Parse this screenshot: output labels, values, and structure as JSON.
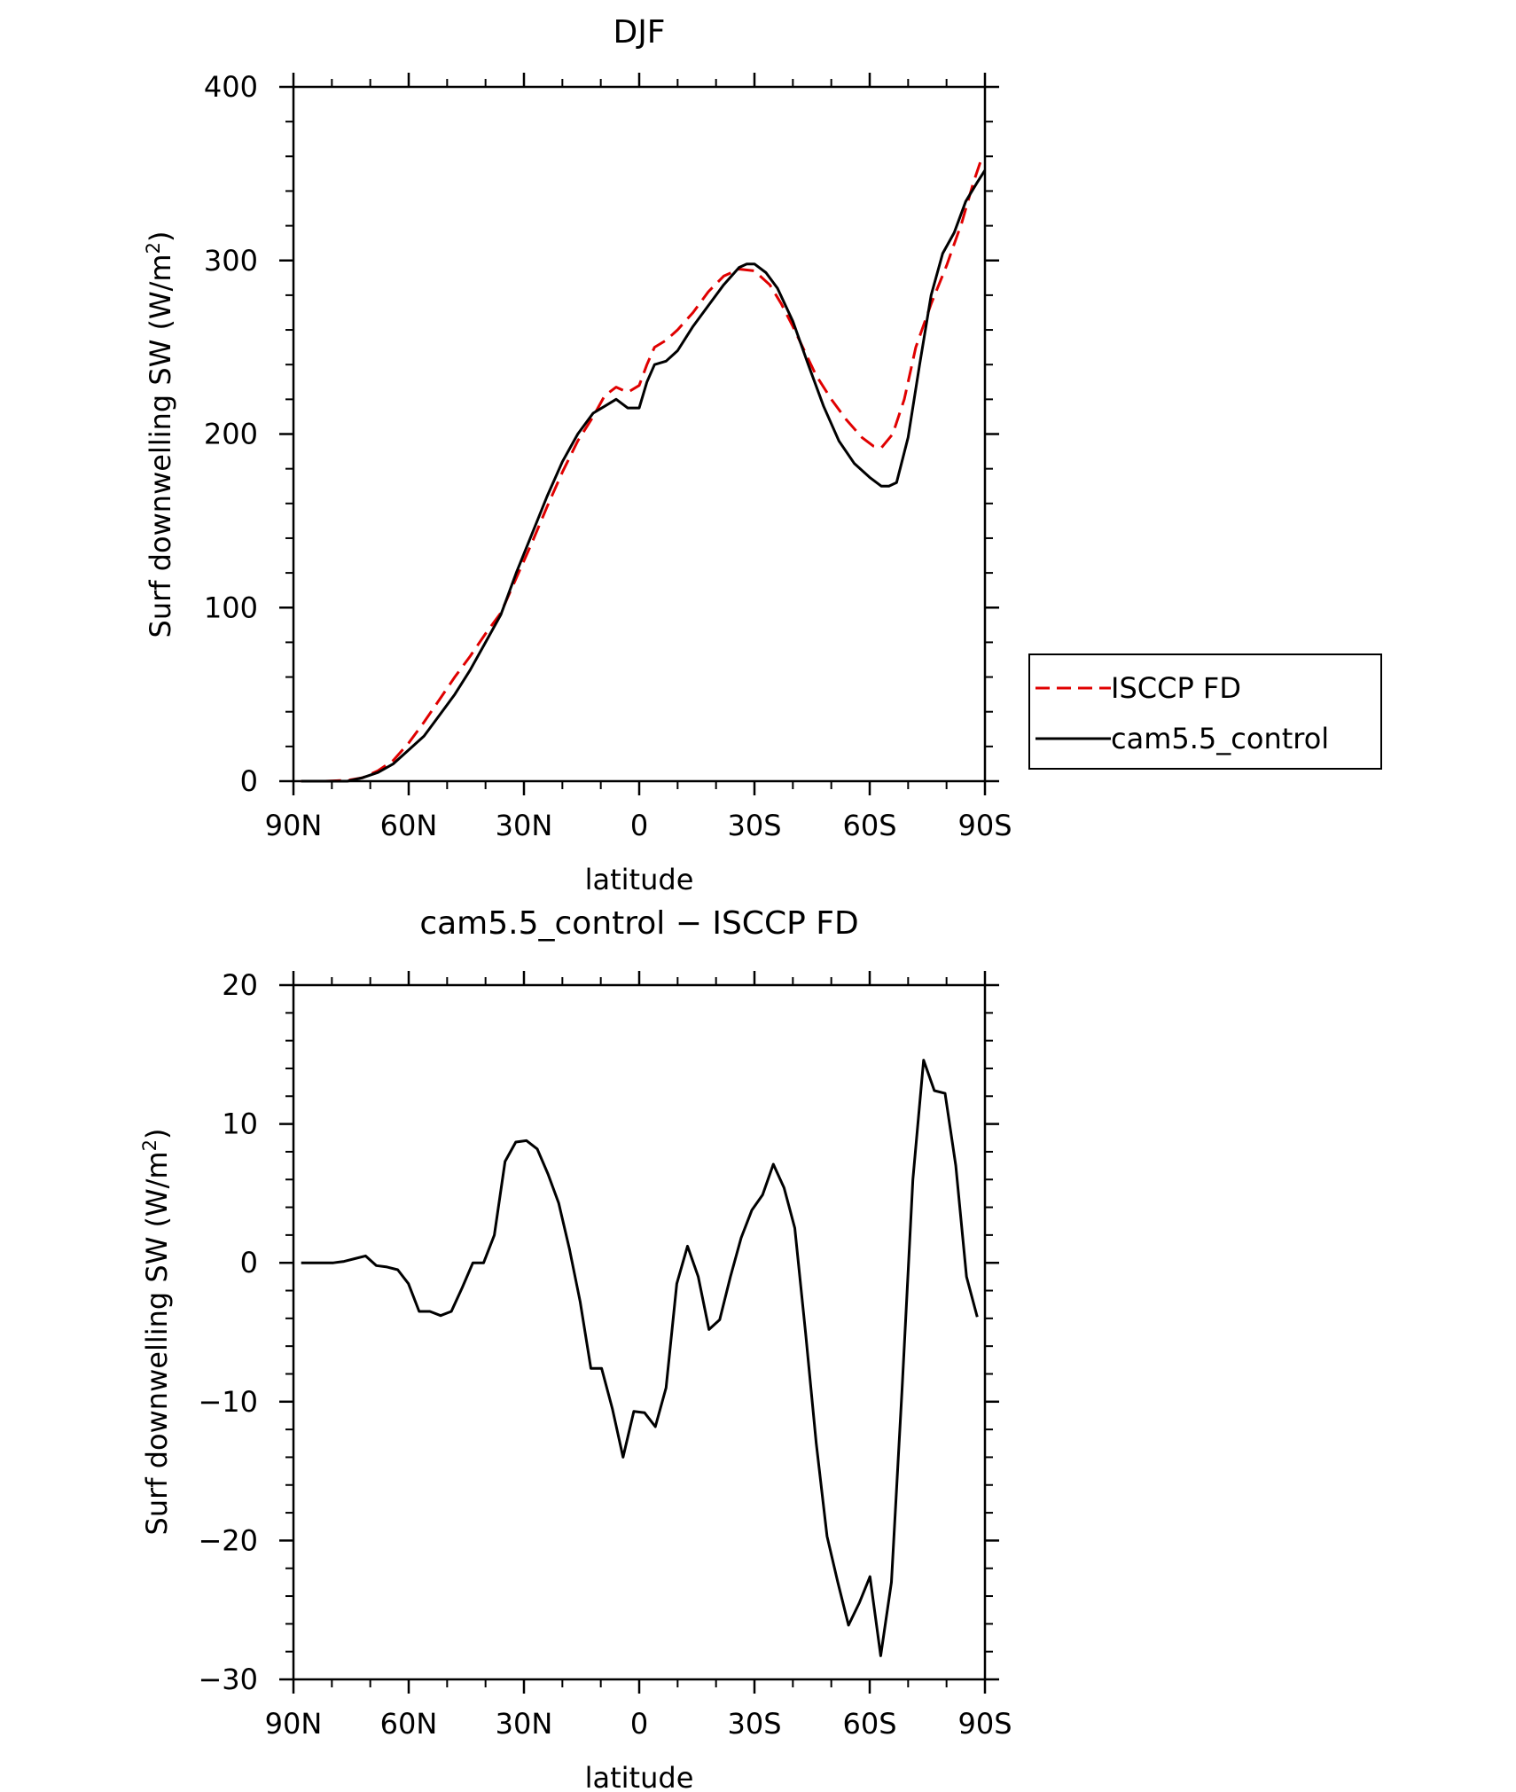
{
  "chart_data": [
    {
      "type": "line",
      "title": "DJF",
      "xlabel": "latitude",
      "ylabel": "Surf downwelling SW (W/m²)",
      "ylabel_main": "Surf downwelling SW (W/m",
      "ylabel_sup": "2",
      "ylabel_close": ")",
      "xlim": [
        -90,
        90
      ],
      "ylim": [
        0,
        400
      ],
      "x_ticks": [
        -90,
        -60,
        -30,
        0,
        30,
        60,
        90
      ],
      "x_tick_labels": [
        "90N",
        "60N",
        "30N",
        "0",
        "30S",
        "60S",
        "90S"
      ],
      "y_ticks": [
        0,
        100,
        200,
        300,
        400
      ],
      "y_tick_labels": [
        "0",
        "100",
        "200",
        "300",
        "400"
      ],
      "legend_position": "right",
      "series": [
        {
          "name": "ISCCP FD",
          "color": "#e00000",
          "dash": "dashed",
          "points": [
            [
              -88,
              0
            ],
            [
              -82,
              0
            ],
            [
              -76,
              0.5
            ],
            [
              -72,
              2
            ],
            [
              -68,
              6
            ],
            [
              -64,
              12
            ],
            [
              -60,
              22
            ],
            [
              -56,
              34
            ],
            [
              -52,
              47
            ],
            [
              -48,
              60
            ],
            [
              -44,
              72
            ],
            [
              -40,
              85
            ],
            [
              -36,
              97
            ],
            [
              -32,
              117
            ],
            [
              -28,
              137
            ],
            [
              -24,
              158
            ],
            [
              -20,
              178
            ],
            [
              -16,
              196
            ],
            [
              -12,
              210
            ],
            [
              -9,
              222
            ],
            [
              -6,
              227
            ],
            [
              -3,
              224
            ],
            [
              0,
              228
            ],
            [
              2,
              240
            ],
            [
              4,
              250
            ],
            [
              7,
              254
            ],
            [
              10,
              260
            ],
            [
              14,
              270
            ],
            [
              18,
              282
            ],
            [
              22,
              291
            ],
            [
              26,
              295
            ],
            [
              30,
              294
            ],
            [
              34,
              286
            ],
            [
              37,
              275
            ],
            [
              40,
              262
            ],
            [
              43,
              248
            ],
            [
              46,
              234
            ],
            [
              50,
              220
            ],
            [
              54,
              208
            ],
            [
              58,
              198
            ],
            [
              61,
              193
            ],
            [
              63,
              192
            ],
            [
              66,
              200
            ],
            [
              69,
              220
            ],
            [
              72,
              250
            ],
            [
              76,
              275
            ],
            [
              80,
              297
            ],
            [
              84,
              322
            ],
            [
              87,
              345
            ],
            [
              89,
              358
            ]
          ]
        },
        {
          "name": "cam5.5_control",
          "color": "#000000",
          "dash": "solid",
          "points": [
            [
              -88,
              0
            ],
            [
              -82,
              0
            ],
            [
              -76,
              0
            ],
            [
              -72,
              2
            ],
            [
              -68,
              5
            ],
            [
              -64,
              10
            ],
            [
              -60,
              18
            ],
            [
              -56,
              26
            ],
            [
              -52,
              38
            ],
            [
              -48,
              50
            ],
            [
              -44,
              64
            ],
            [
              -40,
              80
            ],
            [
              -36,
              96
            ],
            [
              -32,
              120
            ],
            [
              -28,
              142
            ],
            [
              -24,
              164
            ],
            [
              -20,
              184
            ],
            [
              -16,
              200
            ],
            [
              -12,
              212
            ],
            [
              -9,
              216
            ],
            [
              -6,
              220
            ],
            [
              -3,
              215
            ],
            [
              0,
              215
            ],
            [
              2,
              230
            ],
            [
              4,
              240
            ],
            [
              7,
              242
            ],
            [
              10,
              248
            ],
            [
              14,
              262
            ],
            [
              18,
              274
            ],
            [
              22,
              286
            ],
            [
              26,
              296
            ],
            [
              28,
              298
            ],
            [
              30,
              298
            ],
            [
              33,
              293
            ],
            [
              36,
              284
            ],
            [
              40,
              265
            ],
            [
              44,
              240
            ],
            [
              48,
              216
            ],
            [
              52,
              196
            ],
            [
              56,
              183
            ],
            [
              60,
              175
            ],
            [
              63,
              170
            ],
            [
              65,
              170
            ],
            [
              67,
              172
            ],
            [
              70,
              198
            ],
            [
              73,
              240
            ],
            [
              76,
              280
            ],
            [
              79,
              304
            ],
            [
              82,
              316
            ],
            [
              85,
              334
            ],
            [
              88,
              345
            ],
            [
              90,
              352
            ]
          ]
        }
      ]
    },
    {
      "type": "line",
      "title": "cam5.5_control − ISCCP FD",
      "xlabel": "latitude",
      "ylabel": "Surf downwelling SW (W/m²)",
      "ylabel_main": "Surf downwelling SW (W/m",
      "ylabel_sup": "2",
      "ylabel_close": ")",
      "xlim": [
        -90,
        90
      ],
      "ylim": [
        -30,
        20
      ],
      "x_ticks": [
        -90,
        -60,
        -30,
        0,
        30,
        60,
        90
      ],
      "x_tick_labels": [
        "90N",
        "60N",
        "30N",
        "0",
        "30S",
        "60S",
        "90S"
      ],
      "y_ticks": [
        -30,
        -20,
        -10,
        0,
        10,
        20
      ],
      "y_tick_labels": [
        "−30",
        "−20",
        "−10",
        "0",
        "10",
        "20"
      ],
      "series": [
        {
          "color": "#000000",
          "dash": "solid",
          "points": [
            [
              -88,
              0
            ],
            [
              -85,
              0
            ],
            [
              -82,
              0
            ],
            [
              -79,
              0
            ],
            [
              -76,
              0.1
            ],
            [
              -73,
              0.3
            ],
            [
              -70,
              0.5
            ],
            [
              -67,
              -0.2
            ],
            [
              -64,
              -0.3
            ],
            [
              -61,
              -0.5
            ],
            [
              -58,
              -1.5
            ],
            [
              -55,
              -3.5
            ],
            [
              -52,
              -3.5
            ],
            [
              -49,
              -3.8
            ],
            [
              -46,
              -3.5
            ],
            [
              -43,
              -1.8
            ],
            [
              -40,
              0
            ],
            [
              -37,
              0
            ],
            [
              -34,
              2
            ],
            [
              -31,
              7.3
            ],
            [
              -28,
              8.7
            ],
            [
              -25,
              8.8
            ],
            [
              -22,
              8.2
            ],
            [
              -19,
              6.4
            ],
            [
              -16,
              4.3
            ],
            [
              -13,
              1
            ],
            [
              -10,
              -2.8
            ],
            [
              -7,
              -7.6
            ],
            [
              -4,
              -7.6
            ],
            [
              -1,
              -10.5
            ],
            [
              2,
              -14
            ],
            [
              5,
              -10.7
            ],
            [
              8,
              -10.8
            ],
            [
              11,
              -11.8
            ],
            [
              14,
              -9
            ],
            [
              17,
              -1.5
            ],
            [
              20,
              1.2
            ],
            [
              23,
              -1
            ],
            [
              26,
              -4.8
            ],
            [
              29,
              -4.1
            ],
            [
              32,
              -1
            ],
            [
              35,
              1.8
            ],
            [
              38,
              3.8
            ],
            [
              41,
              4.9
            ],
            [
              44,
              7.1
            ],
            [
              47,
              5.4
            ],
            [
              50,
              2.5
            ],
            [
              53,
              -5
            ],
            [
              56,
              -13
            ],
            [
              59,
              -19.7
            ],
            [
              62,
              -23
            ],
            [
              65,
              -26.1
            ],
            [
              68,
              -24.5
            ],
            [
              71,
              -22.6
            ],
            [
              74,
              -28.3
            ],
            [
              77,
              -23
            ],
            [
              80,
              -9
            ],
            [
              83,
              6
            ],
            [
              86,
              14.6
            ],
            [
              89,
              12.4
            ],
            [
              92,
              12.2
            ],
            [
              95,
              7
            ],
            [
              98,
              -1
            ],
            [
              101,
              -3.9
            ]
          ]
        }
      ]
    }
  ]
}
